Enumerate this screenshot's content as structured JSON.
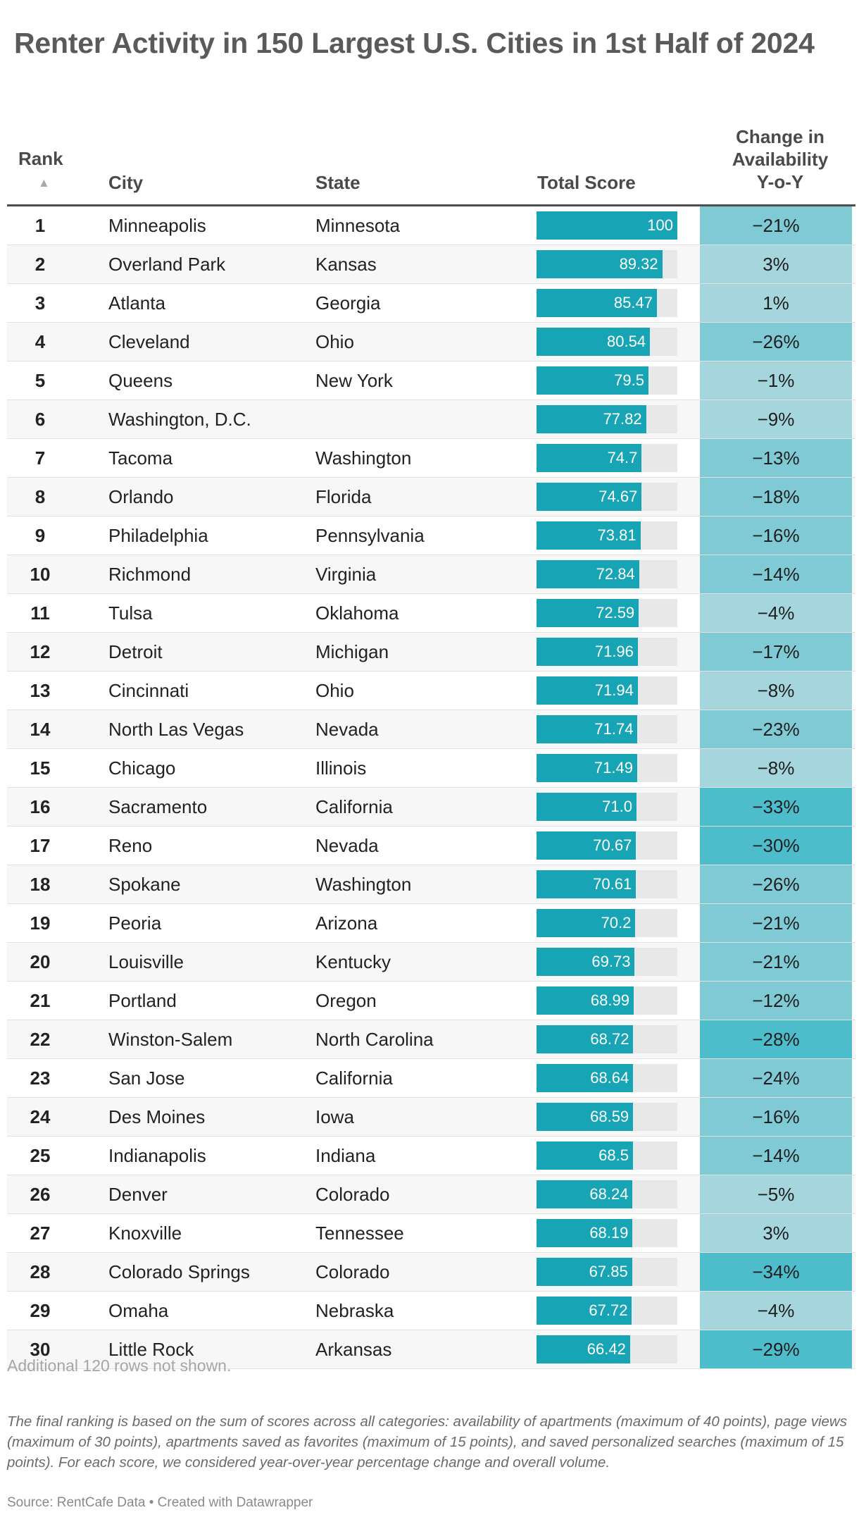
{
  "chart_data": {
    "type": "table",
    "title": "Renter Activity in 150 Largest U.S. Cities in 1st Half of 2024",
    "columns": {
      "rank": "Rank",
      "sort_indicator": "▲",
      "city": "City",
      "state": "State",
      "score": "Total Score",
      "change_lines": [
        "Change in",
        "Availability",
        "Y-o-Y"
      ]
    },
    "score_max": 100,
    "colors": {
      "bar": "#17a5b6",
      "bar_track": "#e8e8e8",
      "change_scale": [
        "#a5d5dd",
        "#80cad6",
        "#4dbccb"
      ]
    },
    "rows": [
      {
        "rank": "1",
        "city": "Minneapolis",
        "state": "Minnesota",
        "score": 100,
        "score_label": "100",
        "change": -21,
        "change_label": "−21%"
      },
      {
        "rank": "2",
        "city": "Overland Park",
        "state": "Kansas",
        "score": 89.32,
        "score_label": "89.32",
        "change": 3,
        "change_label": "3%"
      },
      {
        "rank": "3",
        "city": "Atlanta",
        "state": "Georgia",
        "score": 85.47,
        "score_label": "85.47",
        "change": 1,
        "change_label": "1%"
      },
      {
        "rank": "4",
        "city": "Cleveland",
        "state": "Ohio",
        "score": 80.54,
        "score_label": "80.54",
        "change": -26,
        "change_label": "−26%"
      },
      {
        "rank": "5",
        "city": "Queens",
        "state": "New York",
        "score": 79.5,
        "score_label": "79.5",
        "change": -1,
        "change_label": "−1%"
      },
      {
        "rank": "6",
        "city": "Washington, D.C.",
        "state": "",
        "score": 77.82,
        "score_label": "77.82",
        "change": -9,
        "change_label": "−9%"
      },
      {
        "rank": "7",
        "city": "Tacoma",
        "state": "Washington",
        "score": 74.7,
        "score_label": "74.7",
        "change": -13,
        "change_label": "−13%"
      },
      {
        "rank": "8",
        "city": "Orlando",
        "state": "Florida",
        "score": 74.67,
        "score_label": "74.67",
        "change": -18,
        "change_label": "−18%"
      },
      {
        "rank": "9",
        "city": "Philadelphia",
        "state": "Pennsylvania",
        "score": 73.81,
        "score_label": "73.81",
        "change": -16,
        "change_label": "−16%"
      },
      {
        "rank": "10",
        "city": "Richmond",
        "state": "Virginia",
        "score": 72.84,
        "score_label": "72.84",
        "change": -14,
        "change_label": "−14%"
      },
      {
        "rank": "11",
        "city": "Tulsa",
        "state": "Oklahoma",
        "score": 72.59,
        "score_label": "72.59",
        "change": -4,
        "change_label": "−4%"
      },
      {
        "rank": "12",
        "city": "Detroit",
        "state": "Michigan",
        "score": 71.96,
        "score_label": "71.96",
        "change": -17,
        "change_label": "−17%"
      },
      {
        "rank": "13",
        "city": "Cincinnati",
        "state": "Ohio",
        "score": 71.94,
        "score_label": "71.94",
        "change": -8,
        "change_label": "−8%"
      },
      {
        "rank": "14",
        "city": "North Las Vegas",
        "state": "Nevada",
        "score": 71.74,
        "score_label": "71.74",
        "change": -23,
        "change_label": "−23%"
      },
      {
        "rank": "15",
        "city": "Chicago",
        "state": "Illinois",
        "score": 71.49,
        "score_label": "71.49",
        "change": -8,
        "change_label": "−8%"
      },
      {
        "rank": "16",
        "city": "Sacramento",
        "state": "California",
        "score": 71.0,
        "score_label": "71.0",
        "change": -33,
        "change_label": "−33%"
      },
      {
        "rank": "17",
        "city": "Reno",
        "state": "Nevada",
        "score": 70.67,
        "score_label": "70.67",
        "change": -30,
        "change_label": "−30%"
      },
      {
        "rank": "18",
        "city": "Spokane",
        "state": "Washington",
        "score": 70.61,
        "score_label": "70.61",
        "change": -26,
        "change_label": "−26%"
      },
      {
        "rank": "19",
        "city": "Peoria",
        "state": "Arizona",
        "score": 70.2,
        "score_label": "70.2",
        "change": -21,
        "change_label": "−21%"
      },
      {
        "rank": "20",
        "city": "Louisville",
        "state": "Kentucky",
        "score": 69.73,
        "score_label": "69.73",
        "change": -21,
        "change_label": "−21%"
      },
      {
        "rank": "21",
        "city": "Portland",
        "state": "Oregon",
        "score": 68.99,
        "score_label": "68.99",
        "change": -12,
        "change_label": "−12%"
      },
      {
        "rank": "22",
        "city": "Winston-Salem",
        "state": "North Carolina",
        "score": 68.72,
        "score_label": "68.72",
        "change": -28,
        "change_label": "−28%"
      },
      {
        "rank": "23",
        "city": "San Jose",
        "state": "California",
        "score": 68.64,
        "score_label": "68.64",
        "change": -24,
        "change_label": "−24%"
      },
      {
        "rank": "24",
        "city": "Des Moines",
        "state": "Iowa",
        "score": 68.59,
        "score_label": "68.59",
        "change": -16,
        "change_label": "−16%"
      },
      {
        "rank": "25",
        "city": "Indianapolis",
        "state": "Indiana",
        "score": 68.5,
        "score_label": "68.5",
        "change": -14,
        "change_label": "−14%"
      },
      {
        "rank": "26",
        "city": "Denver",
        "state": "Colorado",
        "score": 68.24,
        "score_label": "68.24",
        "change": -5,
        "change_label": "−5%"
      },
      {
        "rank": "27",
        "city": "Knoxville",
        "state": "Tennessee",
        "score": 68.19,
        "score_label": "68.19",
        "change": 3,
        "change_label": "3%"
      },
      {
        "rank": "28",
        "city": "Colorado Springs",
        "state": "Colorado",
        "score": 67.85,
        "score_label": "67.85",
        "change": -34,
        "change_label": "−34%"
      },
      {
        "rank": "29",
        "city": "Omaha",
        "state": "Nebraska",
        "score": 67.72,
        "score_label": "67.72",
        "change": -4,
        "change_label": "−4%"
      },
      {
        "rank": "30",
        "city": "Little Rock",
        "state": "Arkansas",
        "score": 66.42,
        "score_label": "66.42",
        "change": -29,
        "change_label": "−29%"
      }
    ],
    "notes": {
      "rows_not_shown": "Additional 120 rows not shown.",
      "description": "The final ranking is based on the sum of scores across all categories: availability of apartments (maximum of 40 points), page views (maximum of 30 points), apartments saved as favorites (maximum of 15 points), and saved personalized searches (maximum of 15 points). For each score, we considered year-over-year percentage change and overall volume.",
      "source": "Source: RentCafe Data • Created with Datawrapper"
    }
  }
}
